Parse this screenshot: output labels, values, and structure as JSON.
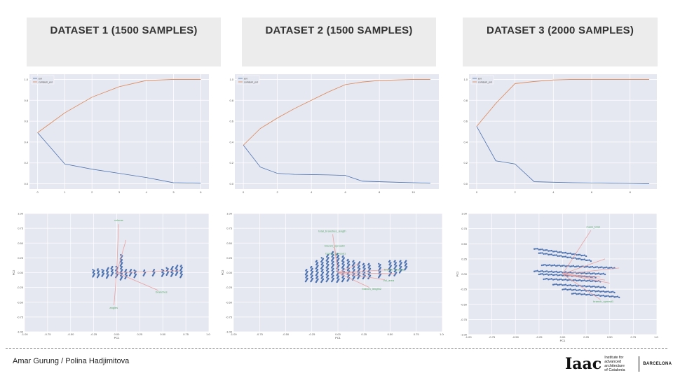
{
  "headers": [
    "DATASET 1 (1500 SAMPLES)",
    "DATASET 2 (1500 SAMPLES)",
    "DATASET 3 (2000 SAMPLES)"
  ],
  "footer": {
    "authors": "Amar Gurung / Polina Hadjimitova"
  },
  "logo": {
    "mark": "Iaac",
    "lines": [
      "Institute for",
      "advanced",
      "architecture",
      "of Catalonia"
    ],
    "city": "BARCELONA"
  },
  "colors": {
    "plot_bg": "#e6e8f1",
    "grid": "#ffffff",
    "evr": "#4c72b0",
    "cumsum": "#dd8452",
    "points": "#4c72b0",
    "loading_arrow": "#e8a0a0",
    "loading_label": "#55a868"
  },
  "chart_data": [
    {
      "type": "line",
      "panel": "dataset1-variance",
      "x": [
        0,
        1,
        2,
        3,
        4,
        5,
        6
      ],
      "series": [
        {
          "name": "evr",
          "values": [
            0.49,
            0.19,
            0.14,
            0.1,
            0.06,
            0.01,
            0.005
          ]
        },
        {
          "name": "cumsum_evr",
          "values": [
            0.49,
            0.68,
            0.83,
            0.93,
            0.99,
            1.0,
            1.0
          ]
        }
      ],
      "xticks": [
        0,
        1,
        2,
        3,
        4,
        5,
        6
      ],
      "yticks": [
        0.0,
        0.2,
        0.4,
        0.6,
        0.8,
        1.0
      ],
      "xlim": [
        -0.3,
        6.3
      ],
      "ylim": [
        -0.05,
        1.05
      ],
      "legend": "top-left",
      "grid": true
    },
    {
      "type": "line",
      "panel": "dataset2-variance",
      "x": [
        0,
        1,
        2,
        3,
        4,
        5,
        6,
        7,
        8,
        9,
        10,
        11
      ],
      "series": [
        {
          "name": "evr",
          "values": [
            0.37,
            0.16,
            0.1,
            0.09,
            0.088,
            0.085,
            0.08,
            0.025,
            0.02,
            0.015,
            0.01,
            0.005
          ]
        },
        {
          "name": "cumsum_evr",
          "values": [
            0.37,
            0.53,
            0.63,
            0.72,
            0.8,
            0.88,
            0.95,
            0.975,
            0.99,
            0.995,
            1.0,
            1.0
          ]
        }
      ],
      "xticks": [
        0,
        2,
        4,
        6,
        8,
        10
      ],
      "yticks": [
        0.0,
        0.2,
        0.4,
        0.6,
        0.8,
        1.0
      ],
      "xlim": [
        -0.5,
        11.5
      ],
      "ylim": [
        -0.05,
        1.05
      ],
      "legend": "top-left",
      "grid": true
    },
    {
      "type": "line",
      "panel": "dataset3-variance",
      "x": [
        0,
        1,
        2,
        3,
        4,
        5,
        6,
        7,
        8,
        9
      ],
      "series": [
        {
          "name": "evr",
          "values": [
            0.55,
            0.22,
            0.19,
            0.02,
            0.015,
            0.01,
            0.008,
            0.005,
            0.003,
            0.0
          ]
        },
        {
          "name": "cumsum_evr",
          "values": [
            0.55,
            0.77,
            0.96,
            0.98,
            0.995,
            1.0,
            1.0,
            1.0,
            1.0,
            1.0
          ]
        }
      ],
      "xticks": [
        0,
        2,
        4,
        6,
        8
      ],
      "yticks": [
        0.0,
        0.2,
        0.4,
        0.6,
        0.8,
        1.0
      ],
      "xlim": [
        -0.4,
        9.4
      ],
      "ylim": [
        -0.05,
        1.05
      ],
      "legend": "top-left",
      "grid": true
    },
    {
      "type": "scatter",
      "panel": "dataset1-biplot",
      "xlabel": "PC1",
      "ylabel": "PC2",
      "xlim": [
        -1.0,
        1.0
      ],
      "ylim": [
        -1.0,
        1.0
      ],
      "xticks": [
        -1.0,
        -0.75,
        -0.5,
        -0.25,
        0.0,
        0.25,
        0.5,
        0.75,
        1.0
      ],
      "yticks": [
        -1.0,
        -0.75,
        -0.5,
        -0.25,
        0.0,
        0.25,
        0.5,
        0.75,
        1.0
      ],
      "clusters": [
        {
          "x": -0.25,
          "y0": -0.07,
          "y1": 0.05
        },
        {
          "x": -0.2,
          "y0": -0.08,
          "y1": 0.06
        },
        {
          "x": -0.15,
          "y0": -0.06,
          "y1": 0.05
        },
        {
          "x": -0.1,
          "y0": -0.09,
          "y1": 0.08
        },
        {
          "x": -0.05,
          "y0": -0.05,
          "y1": 0.1
        },
        {
          "x": 0.0,
          "y0": -0.08,
          "y1": 0.1
        },
        {
          "x": 0.05,
          "y0": -0.12,
          "y1": 0.3
        },
        {
          "x": 0.1,
          "y0": -0.1,
          "y1": 0.05
        },
        {
          "x": 0.15,
          "y0": -0.05,
          "y1": 0.05
        },
        {
          "x": 0.2,
          "y0": -0.08,
          "y1": 0.04
        },
        {
          "x": 0.3,
          "y0": -0.05,
          "y1": 0.04
        },
        {
          "x": 0.4,
          "y0": -0.05,
          "y1": 0.05
        },
        {
          "x": 0.5,
          "y0": -0.06,
          "y1": 0.05
        },
        {
          "x": 0.55,
          "y0": -0.04,
          "y1": 0.08
        },
        {
          "x": 0.6,
          "y0": -0.06,
          "y1": 0.1
        },
        {
          "x": 0.65,
          "y0": -0.04,
          "y1": 0.12
        },
        {
          "x": 0.7,
          "y0": -0.08,
          "y1": 0.12
        }
      ],
      "loadings": [
        {
          "label": "volume",
          "x": 0.02,
          "y": 0.82
        },
        {
          "label": "angles",
          "x": -0.03,
          "y": -0.55
        },
        {
          "label": "branches",
          "x": 0.45,
          "y": -0.3
        },
        {
          "label": "",
          "x": 0.68,
          "y": 0.03
        },
        {
          "label": "",
          "x": 0.1,
          "y": 0.55
        }
      ]
    },
    {
      "type": "scatter",
      "panel": "dataset2-biplot",
      "xlabel": "PC1",
      "ylabel": "PC2",
      "xlim": [
        -1.0,
        1.0
      ],
      "ylim": [
        -1.0,
        1.0
      ],
      "xticks": [
        -1.0,
        -0.75,
        -0.5,
        -0.25,
        0.0,
        0.25,
        0.5,
        0.75,
        1.0
      ],
      "yticks": [
        -1.0,
        -0.75,
        -0.5,
        -0.25,
        0.0,
        0.25,
        0.5,
        0.75,
        1.0
      ],
      "clusters": [
        {
          "x": -0.3,
          "y0": -0.15,
          "y1": 0.05
        },
        {
          "x": -0.25,
          "y0": -0.15,
          "y1": 0.1
        },
        {
          "x": -0.2,
          "y0": -0.16,
          "y1": 0.2
        },
        {
          "x": -0.15,
          "y0": -0.16,
          "y1": 0.25
        },
        {
          "x": -0.1,
          "y0": -0.15,
          "y1": 0.3
        },
        {
          "x": -0.05,
          "y0": -0.15,
          "y1": 0.35
        },
        {
          "x": 0.0,
          "y0": -0.16,
          "y1": 0.32
        },
        {
          "x": 0.05,
          "y0": -0.15,
          "y1": 0.28
        },
        {
          "x": 0.1,
          "y0": -0.14,
          "y1": 0.22
        },
        {
          "x": 0.15,
          "y0": -0.12,
          "y1": 0.2
        },
        {
          "x": 0.2,
          "y0": -0.1,
          "y1": 0.18
        },
        {
          "x": 0.25,
          "y0": -0.1,
          "y1": 0.15
        },
        {
          "x": 0.3,
          "y0": -0.1,
          "y1": 0.15
        },
        {
          "x": 0.4,
          "y0": -0.08,
          "y1": 0.15
        },
        {
          "x": 0.5,
          "y0": -0.05,
          "y1": 0.2
        },
        {
          "x": 0.55,
          "y0": -0.05,
          "y1": 0.2
        },
        {
          "x": 0.6,
          "y0": 0.0,
          "y1": 0.2
        },
        {
          "x": 0.65,
          "y0": 0.05,
          "y1": 0.2
        }
      ],
      "loadings": [
        {
          "label": "total_branches_length",
          "x": -0.05,
          "y": 0.65
        },
        {
          "label": "branch_spread3",
          "x": -0.03,
          "y": 0.42
        },
        {
          "label": "branch_spread1",
          "x": -0.02,
          "y": 0.3
        },
        {
          "label": "branch_spread2",
          "x": 0.5,
          "y": 0.05
        },
        {
          "label": "",
          "x": 0.55,
          "y": -0.02
        },
        {
          "label": "vol_area",
          "x": 0.45,
          "y": -0.12
        },
        {
          "label": "branch_length2",
          "x": 0.3,
          "y": -0.25
        },
        {
          "label": "",
          "x": 0.2,
          "y": 0.15
        }
      ]
    },
    {
      "type": "scatter",
      "panel": "dataset3-biplot",
      "xlabel": "PC1",
      "ylabel": "PC2",
      "xlim": [
        -1.0,
        1.0
      ],
      "ylim": [
        -1.0,
        1.0
      ],
      "xticks": [
        -1.0,
        -0.75,
        -0.5,
        -0.25,
        0.0,
        0.25,
        0.5,
        0.75,
        1.0
      ],
      "yticks": [
        -1.0,
        -0.75,
        -0.5,
        -0.25,
        0.0,
        0.25,
        0.5,
        0.75,
        1.0
      ],
      "bands": [
        {
          "x0": -0.3,
          "x1": 0.25,
          "y0": 0.42,
          "y1": 0.3
        },
        {
          "x0": -0.25,
          "x1": 0.3,
          "y0": 0.35,
          "y1": 0.22
        },
        {
          "x0": -0.22,
          "x1": 0.55,
          "y0": 0.15,
          "y1": 0.1
        },
        {
          "x0": -0.3,
          "x1": 0.45,
          "y0": 0.05,
          "y1": 0.0
        },
        {
          "x0": -0.25,
          "x1": 0.35,
          "y0": 0.0,
          "y1": -0.05
        },
        {
          "x0": -0.2,
          "x1": 0.4,
          "y0": -0.08,
          "y1": -0.12
        },
        {
          "x0": -0.1,
          "x1": 0.45,
          "y0": -0.17,
          "y1": -0.22
        },
        {
          "x0": 0.0,
          "x1": 0.55,
          "y0": -0.25,
          "y1": -0.3
        },
        {
          "x0": 0.1,
          "x1": 0.6,
          "y0": -0.32,
          "y1": -0.38
        }
      ],
      "loadings": [
        {
          "label": "mass_total",
          "x": 0.3,
          "y": 0.72
        },
        {
          "label": "",
          "x": 0.45,
          "y": 0.25
        },
        {
          "label": "",
          "x": 0.6,
          "y": 0.1
        },
        {
          "label": "",
          "x": 0.4,
          "y": -0.05
        },
        {
          "label": "",
          "x": 0.45,
          "y": -0.1
        },
        {
          "label": "",
          "x": 0.5,
          "y": -0.15
        },
        {
          "label": "branch_spread1",
          "x": 0.4,
          "y": -0.42
        }
      ]
    }
  ]
}
